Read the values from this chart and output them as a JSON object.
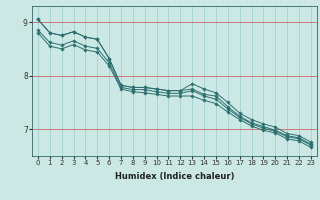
{
  "title": "",
  "xlabel": "Humidex (Indice chaleur)",
  "bg_color": "#cce8e4",
  "plot_bg_color": "#cce8e4",
  "grid_color_h": "#cc7777",
  "grid_color_v": "#99cccc",
  "line_color": "#2d7070",
  "xlim": [
    -0.5,
    23.5
  ],
  "ylim": [
    6.5,
    9.3
  ],
  "yticks": [
    7,
    8,
    9
  ],
  "xticks": [
    0,
    1,
    2,
    3,
    4,
    5,
    6,
    7,
    8,
    9,
    10,
    11,
    12,
    13,
    14,
    15,
    16,
    17,
    18,
    19,
    20,
    21,
    22,
    23
  ],
  "lines": [
    [
      9.05,
      8.8,
      8.75,
      8.82,
      8.72,
      8.68,
      8.32,
      7.82,
      7.78,
      7.78,
      7.75,
      7.72,
      7.72,
      7.75,
      7.65,
      7.62,
      7.42,
      7.24,
      7.12,
      7.05,
      6.98,
      6.88,
      6.84,
      6.72
    ],
    [
      9.05,
      8.8,
      8.75,
      8.82,
      8.72,
      8.68,
      8.32,
      7.82,
      7.78,
      7.78,
      7.75,
      7.72,
      7.72,
      7.85,
      7.75,
      7.68,
      7.5,
      7.3,
      7.18,
      7.1,
      7.04,
      6.92,
      6.88,
      6.76
    ],
    [
      8.8,
      8.55,
      8.5,
      8.58,
      8.48,
      8.44,
      8.18,
      7.75,
      7.7,
      7.68,
      7.65,
      7.62,
      7.62,
      7.62,
      7.54,
      7.48,
      7.32,
      7.18,
      7.06,
      6.98,
      6.93,
      6.82,
      6.78,
      6.66
    ],
    [
      8.85,
      8.62,
      8.57,
      8.65,
      8.55,
      8.51,
      8.24,
      7.78,
      7.74,
      7.74,
      7.7,
      7.67,
      7.67,
      7.72,
      7.62,
      7.56,
      7.38,
      7.22,
      7.1,
      7.02,
      6.96,
      6.86,
      6.82,
      6.7
    ]
  ],
  "marker": "D",
  "markersize": 1.8,
  "linewidth": 0.7,
  "tick_fontsize": 5.0,
  "xlabel_fontsize": 6.0
}
